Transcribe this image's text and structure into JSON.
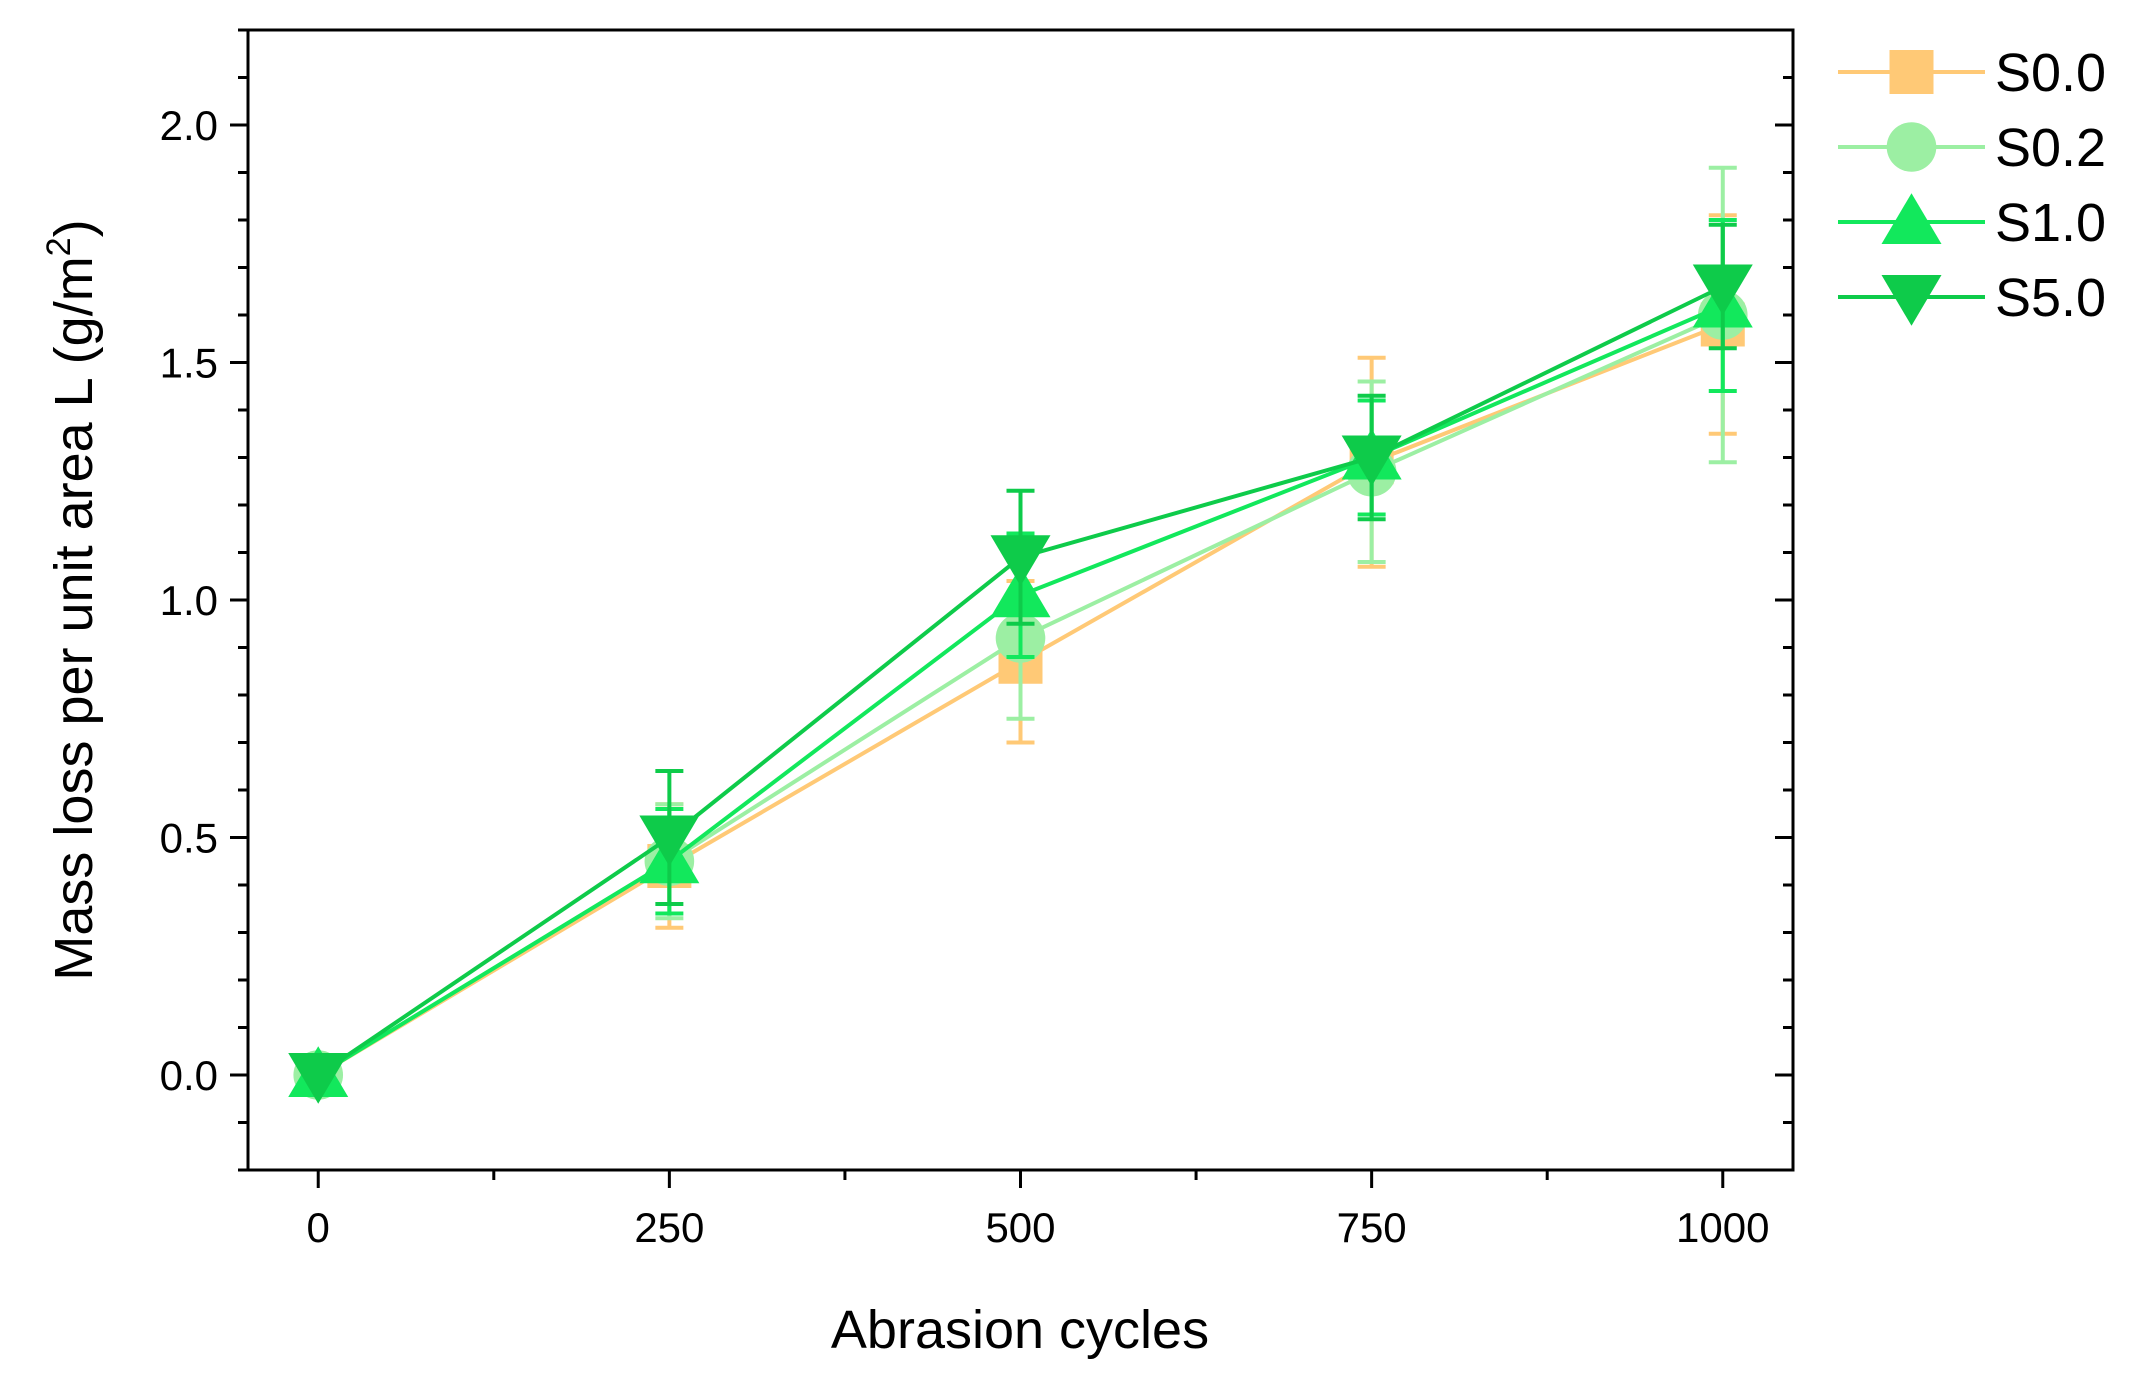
{
  "chart_data": {
    "type": "line",
    "title": "",
    "xlabel": "Abrasion cycles",
    "ylabel": "Mass loss per unit area L (g/m",
    "ylabel_superscript": "2",
    "ylabel_close": ")",
    "x": [
      0,
      250,
      500,
      750,
      1000
    ],
    "xlim": [
      -50,
      1050
    ],
    "ylim": [
      -0.2,
      2.2
    ],
    "x_ticks": [
      0,
      250,
      500,
      750,
      1000
    ],
    "x_tick_labels": [
      "0",
      "250",
      "500",
      "750",
      "1000"
    ],
    "y_ticks": [
      0.0,
      0.5,
      1.0,
      1.5,
      2.0
    ],
    "y_tick_labels": [
      "0.0",
      "0.5",
      "1.0",
      "1.5",
      "2.0"
    ],
    "grid": false,
    "legend_position": "top-right outside",
    "series": [
      {
        "name": "S0.0",
        "marker": "square",
        "color": "#FFC976",
        "values": [
          0.0,
          0.44,
          0.87,
          1.29,
          1.58
        ],
        "errors": [
          0.0,
          0.13,
          0.17,
          0.22,
          0.23
        ]
      },
      {
        "name": "S0.2",
        "marker": "circle",
        "color": "#9CEFA3",
        "values": [
          0.0,
          0.45,
          0.92,
          1.27,
          1.6
        ],
        "errors": [
          0.0,
          0.12,
          0.17,
          0.19,
          0.31
        ]
      },
      {
        "name": "S1.0",
        "marker": "triangle-up",
        "color": "#12E85C",
        "values": [
          0.0,
          0.45,
          1.01,
          1.3,
          1.62
        ],
        "errors": [
          0.0,
          0.11,
          0.13,
          0.12,
          0.18
        ]
      },
      {
        "name": "S5.0",
        "marker": "triangle-down",
        "color": "#0ECB4A",
        "values": [
          0.0,
          0.5,
          1.09,
          1.3,
          1.66
        ],
        "errors": [
          0.0,
          0.14,
          0.14,
          0.13,
          0.13
        ]
      }
    ]
  }
}
